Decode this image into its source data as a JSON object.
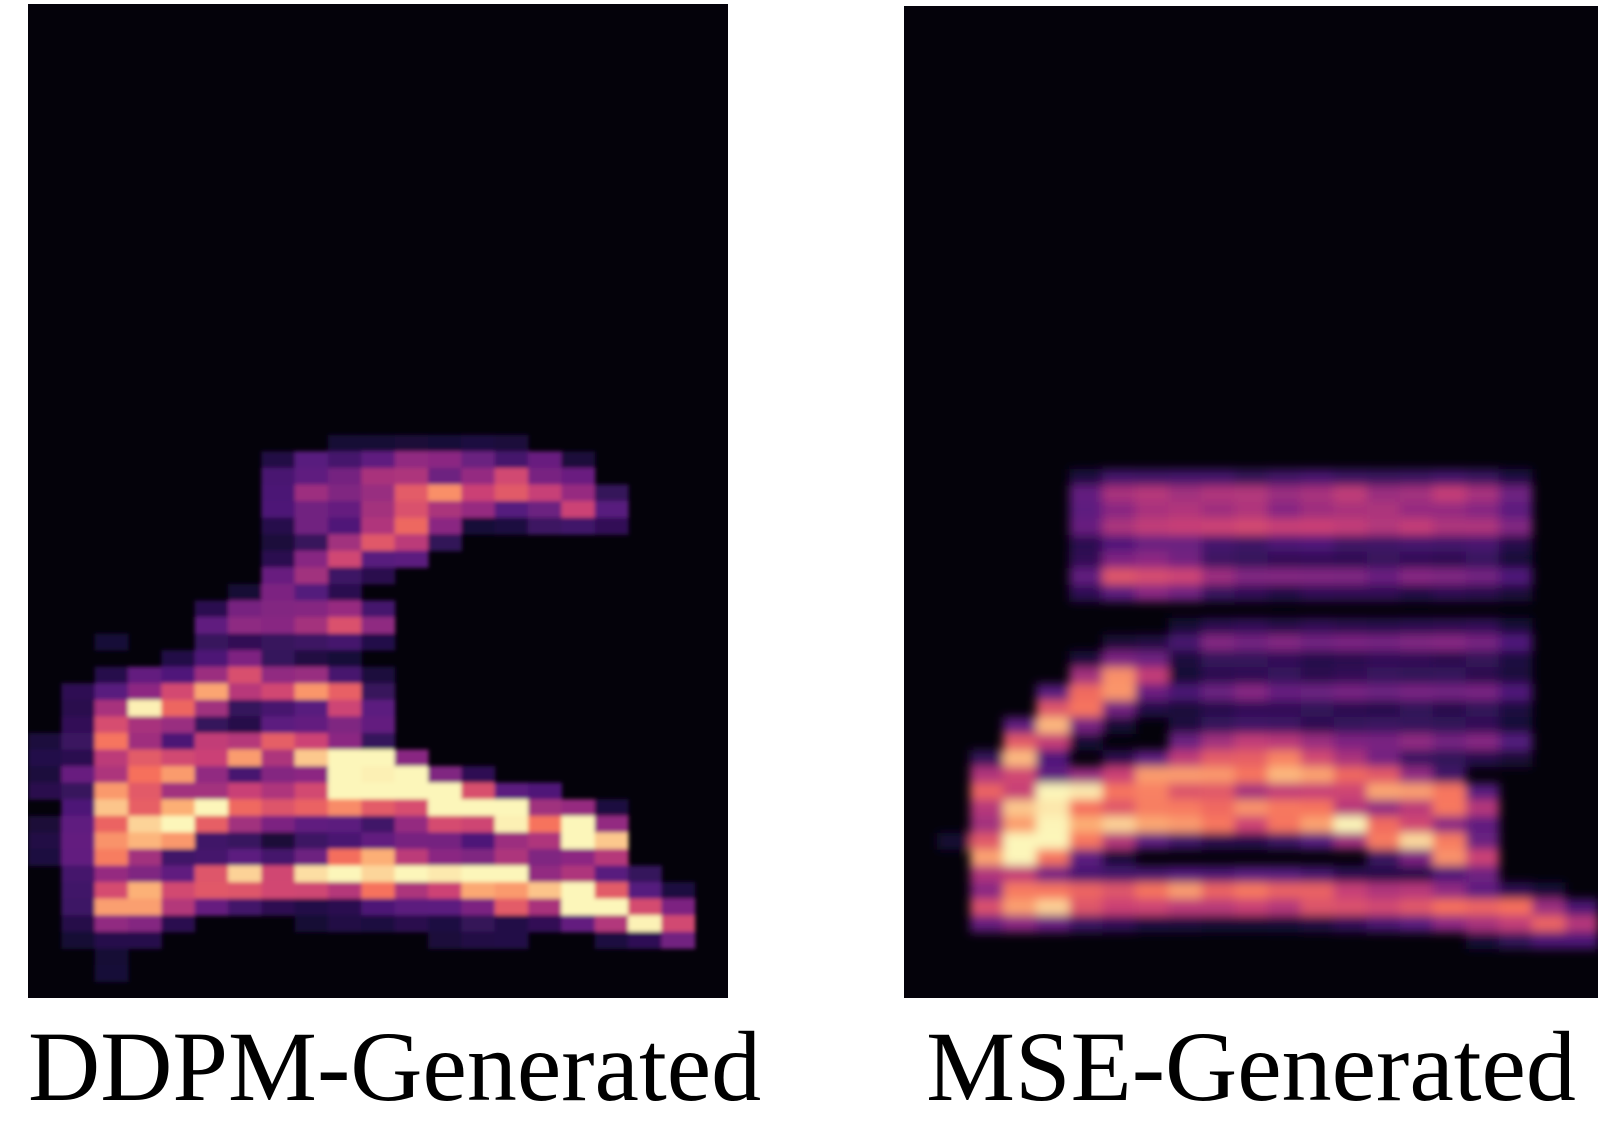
{
  "figure": {
    "panels": [
      {
        "caption": "DDPM-Generated"
      },
      {
        "caption": "MSE-Generated"
      }
    ]
  }
}
